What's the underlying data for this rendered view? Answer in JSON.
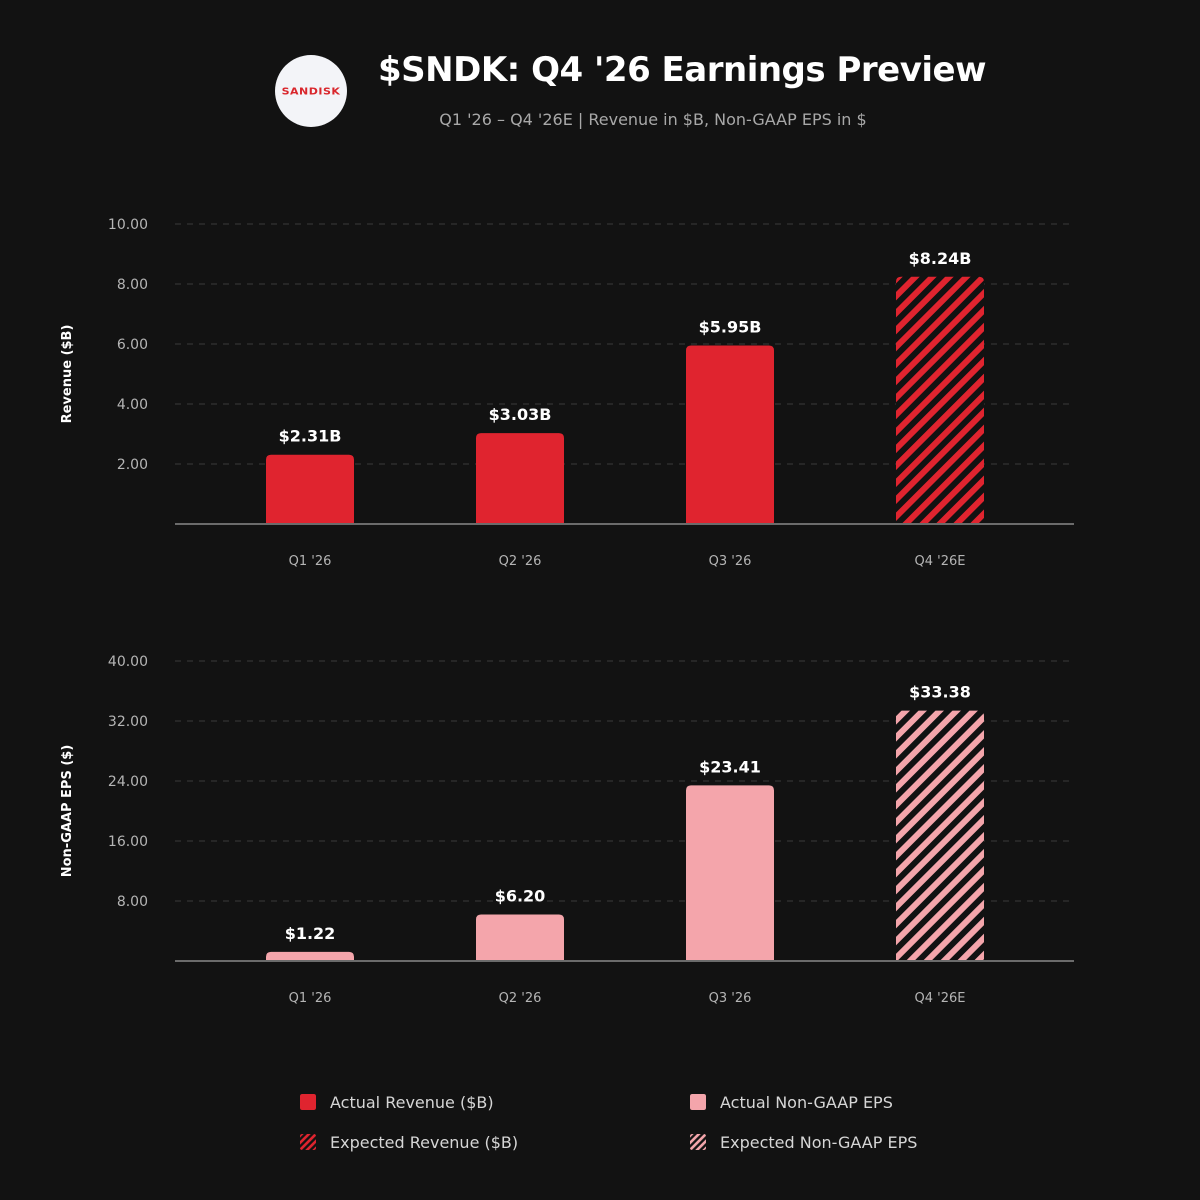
{
  "header": {
    "logo_text": "SANDISK",
    "title": "$SNDK: Q4 '26 Earnings Preview",
    "subtitle": "Q1 '26 – Q4 '26E | Revenue in $B, Non-GAAP EPS in $"
  },
  "colors": {
    "background": "#121212",
    "revenue": "#e0242f",
    "eps": "#f4a5ab",
    "grid": "#3a3a3a",
    "axis": "#6b6b6b",
    "tick_text": "#b5b5b5",
    "label_text": "#ffffff"
  },
  "chart_data": [
    {
      "type": "bar",
      "ylabel": "Revenue ($B)",
      "categories": [
        "Q1 '26",
        "Q2 '26",
        "Q3 '26",
        "Q4 '26E"
      ],
      "values": [
        2.31,
        3.03,
        5.95,
        8.24
      ],
      "value_labels": [
        "$2.31B",
        "$3.03B",
        "$5.95B",
        "$8.24B"
      ],
      "expected": [
        false,
        false,
        false,
        true
      ],
      "yticks": [
        "2.00",
        "4.00",
        "6.00",
        "8.00",
        "10.00"
      ],
      "ylim": [
        0,
        10
      ],
      "grid": true,
      "color_key": "revenue"
    },
    {
      "type": "bar",
      "ylabel": "Non-GAAP EPS ($)",
      "categories": [
        "Q1 '26",
        "Q2 '26",
        "Q3 '26",
        "Q4 '26E"
      ],
      "values": [
        1.22,
        6.2,
        23.41,
        33.38
      ],
      "value_labels": [
        "$1.22",
        "$6.20",
        "$23.41",
        "$33.38"
      ],
      "expected": [
        false,
        false,
        false,
        true
      ],
      "yticks": [
        "8.00",
        "16.00",
        "24.00",
        "32.00",
        "40.00"
      ],
      "ylim": [
        0,
        40
      ],
      "grid": true,
      "color_key": "eps"
    }
  ],
  "legend": [
    {
      "label": "Actual Revenue ($B)",
      "color_key": "revenue",
      "hatched": false
    },
    {
      "label": "Expected Revenue ($B)",
      "color_key": "revenue",
      "hatched": true
    },
    {
      "label": "Actual Non-GAAP EPS",
      "color_key": "eps",
      "hatched": false
    },
    {
      "label": "Expected Non-GAAP EPS",
      "color_key": "eps",
      "hatched": true
    }
  ]
}
